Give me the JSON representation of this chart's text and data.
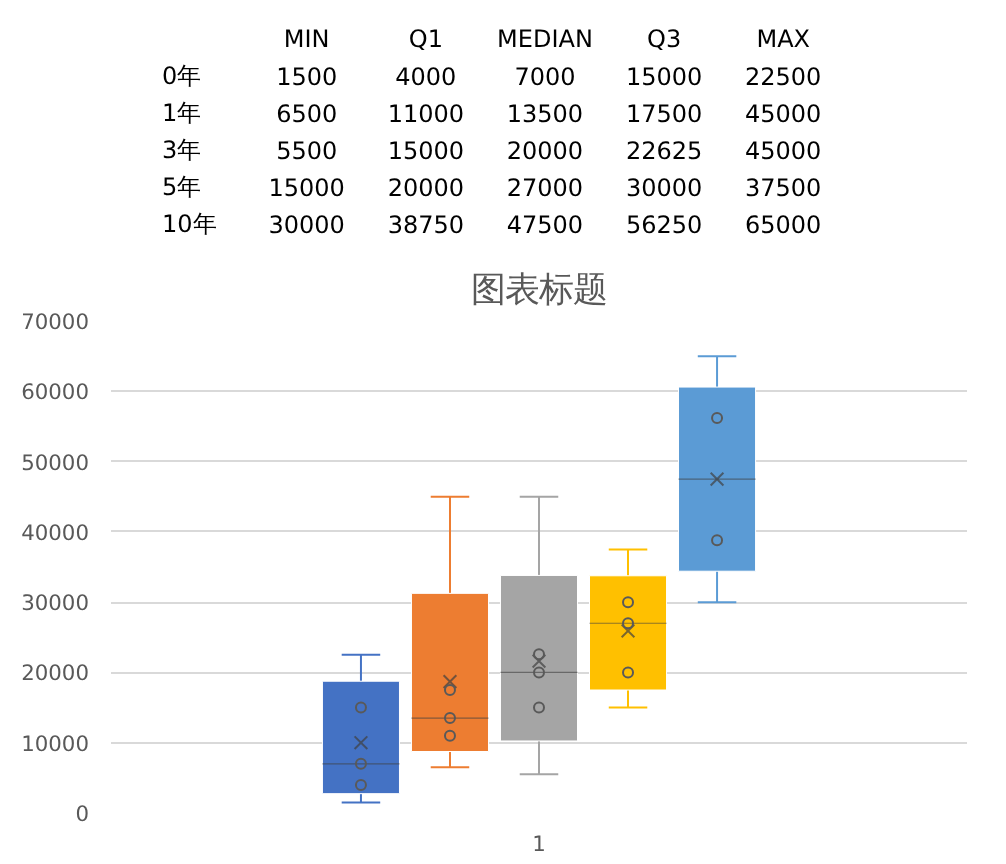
{
  "chart_data": [
    {
      "type": "heatmap",
      "data_labels": true,
      "categories": [
        "MIN",
        "Q1",
        "MEDIAN",
        "Q3",
        "MAX"
      ],
      "y_categories": [
        "0年",
        "1年",
        "3年",
        "5年",
        "10年"
      ],
      "cells": [
        [
          1500,
          4000,
          7000,
          15000,
          22500
        ],
        [
          6500,
          11000,
          13500,
          17500,
          45000
        ],
        [
          5500,
          15000,
          20000,
          22625,
          45000
        ],
        [
          15000,
          20000,
          27000,
          30000,
          37500
        ],
        [
          30000,
          38750,
          47500,
          56250,
          65000
        ]
      ]
    },
    {
      "type": "box",
      "title": "图表标题",
      "categories": [
        "1"
      ],
      "ylim": [
        0,
        70000
      ],
      "yticks": [
        0,
        10000,
        20000,
        30000,
        40000,
        50000,
        60000,
        70000
      ],
      "grid": "y",
      "marker": "circle",
      "series": [
        {
          "color": "#4472c4",
          "boxes": [
            {
              "low": 1500,
              "q1": 2750,
              "median": 7000,
              "q3": 18750,
              "high": 22500,
              "mean": 10000
            }
          ]
        },
        {
          "color": "#ed7d31",
          "boxes": [
            {
              "low": 6500,
              "q1": 8750,
              "median": 13500,
              "q3": 31250,
              "high": 45000,
              "mean": 18700
            }
          ]
        },
        {
          "color": "#a5a5a5",
          "boxes": [
            {
              "low": 5500,
              "q1": 10250,
              "median": 20000,
              "q3": 33800,
              "high": 45000,
              "mean": 21600
            }
          ]
        },
        {
          "color": "#ffc000",
          "boxes": [
            {
              "low": 15000,
              "q1": 17500,
              "median": 27000,
              "q3": 33750,
              "high": 37500,
              "mean": 25900
            }
          ]
        },
        {
          "color": "#5b9bd5",
          "boxes": [
            {
              "low": 30000,
              "q1": 34400,
              "median": 47500,
              "q3": 60600,
              "high": 65000,
              "mean": 47500
            }
          ]
        },
        {
          "type": "scatter",
          "color": "#595959",
          "x": [
            "1",
            "1",
            "1"
          ],
          "values": [
            4000,
            7000,
            15000
          ]
        },
        {
          "type": "scatter",
          "color": "#595959",
          "x": [
            "1",
            "1",
            "1"
          ],
          "values": [
            11000,
            13500,
            17500
          ]
        },
        {
          "type": "scatter",
          "color": "#595959",
          "x": [
            "1",
            "1",
            "1"
          ],
          "values": [
            15000,
            20000,
            22600
          ]
        },
        {
          "type": "scatter",
          "color": "#595959",
          "x": [
            "1",
            "1",
            "1"
          ],
          "values": [
            20000,
            27000,
            30000
          ]
        },
        {
          "type": "scatter",
          "color": "#595959",
          "x": [
            "1",
            "1",
            "1"
          ],
          "values": [
            38800,
            null,
            56200
          ]
        }
      ]
    }
  ]
}
